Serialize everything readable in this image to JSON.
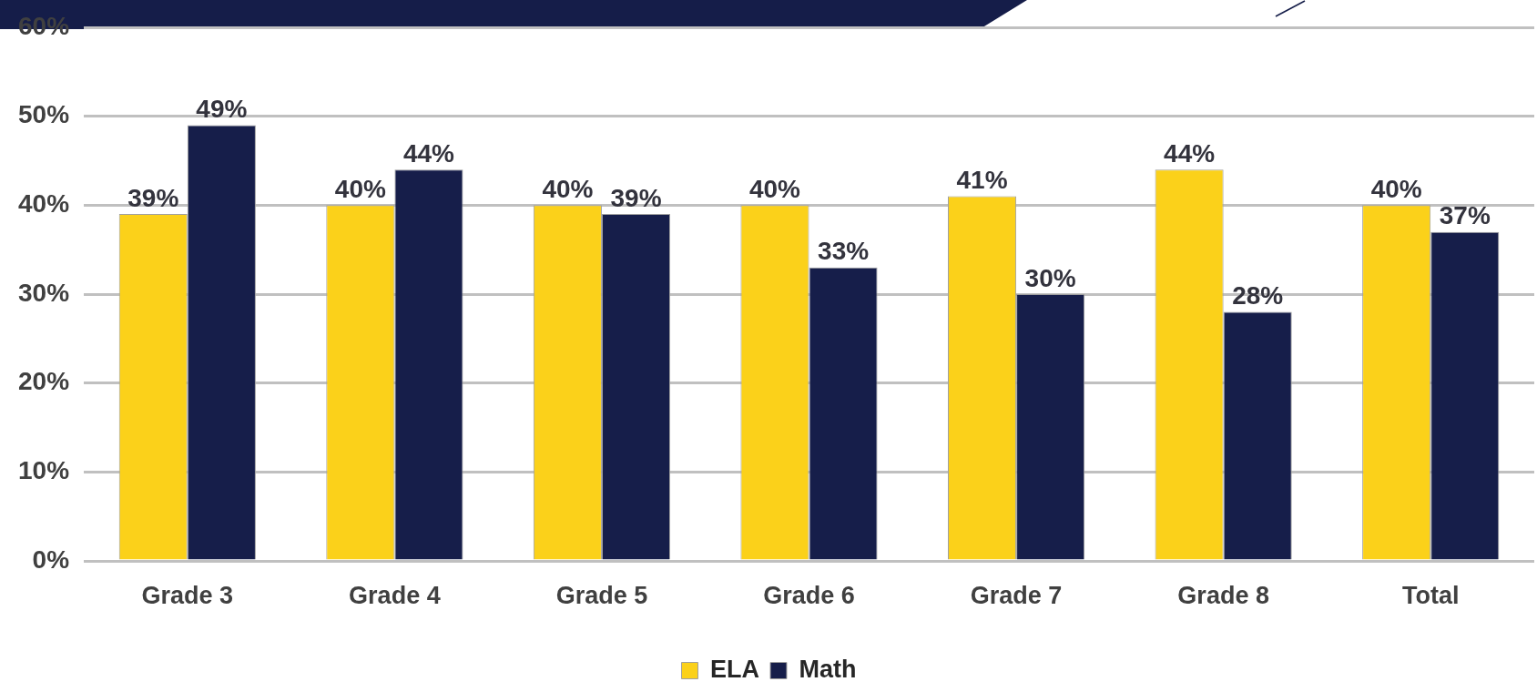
{
  "chart_data": {
    "type": "bar",
    "categories": [
      "Grade 3",
      "Grade 4",
      "Grade 5",
      "Grade 6",
      "Grade 7",
      "Grade 8",
      "Total"
    ],
    "series": [
      {
        "name": "ELA",
        "color": "#fbd11a",
        "values": [
          39,
          40,
          40,
          40,
          41,
          44,
          40
        ],
        "value_labels": [
          "39%",
          "40%",
          "40%",
          "40%",
          "41%",
          "44%",
          "40%"
        ]
      },
      {
        "name": "Math",
        "color": "#161e4a",
        "values": [
          49,
          44,
          39,
          33,
          30,
          28,
          37
        ],
        "value_labels": [
          "49%",
          "44%",
          "39%",
          "33%",
          "30%",
          "28%",
          "37%"
        ]
      }
    ],
    "ylim": [
      0,
      60
    ],
    "yticks": [
      {
        "value": 0,
        "label": "0%"
      },
      {
        "value": 10,
        "label": "10%"
      },
      {
        "value": 20,
        "label": "20%"
      },
      {
        "value": 30,
        "label": "30%"
      },
      {
        "value": 40,
        "label": "40%"
      },
      {
        "value": 50,
        "label": "50%"
      },
      {
        "value": 60,
        "label": "60%"
      }
    ],
    "grid": "y",
    "legend": "bottom"
  }
}
